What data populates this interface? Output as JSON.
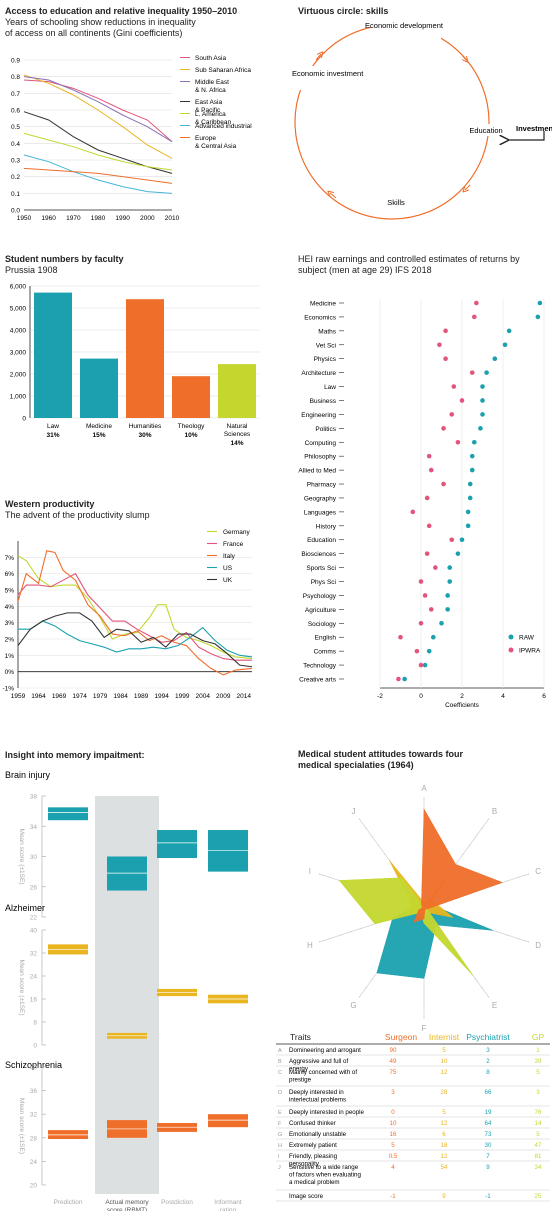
{
  "access": {
    "title": "Access to education and relative inequality 1950–2010",
    "subtitle": "Years of schooling show reductions in inequality of access on all continents (Gini coefficients)"
  },
  "virtuous": {
    "title": "Virtuous circle: skills",
    "nodes": [
      "Economic development",
      "Education",
      "Skills",
      "Economic investment"
    ],
    "input_label": "Investment"
  },
  "student": {
    "title": "Student numbers by faculty",
    "subtitle": "Prussia 1908"
  },
  "hei": {
    "title": "HEI raw earnings and controlled estimates of returns by subject (men at age 29)  IFS 2018"
  },
  "western": {
    "title": "Western productivity",
    "subtitle": "The advent of the productivity slump"
  },
  "memory": {
    "title": "Insight into memory impaitment:"
  },
  "medical": {
    "title": "Medical student attitudes towards four medical specialaties (1964)",
    "table_headers": [
      "Traits",
      "Surgeon",
      "Internist",
      "Psychiatrist",
      "GP"
    ],
    "rows": [
      {
        "letter": "A",
        "trait": "Domineering and arrogant",
        "values": [
          "90",
          "5",
          "3",
          "1"
        ]
      },
      {
        "letter": "B",
        "trait": "Aggressive and full of energy",
        "values": [
          "49",
          "10",
          "2",
          "39"
        ]
      },
      {
        "letter": "C",
        "trait": "Mainly concerned with of prestige",
        "values": [
          "75",
          "12",
          "8",
          "5"
        ]
      },
      {
        "letter": "D",
        "trait": "Deeply interested in interlectual problems",
        "values": [
          "3",
          "28",
          "66",
          "3"
        ]
      },
      {
        "letter": "E",
        "trait": "Deeply interested in people",
        "values": [
          "0",
          "5",
          "19",
          "76"
        ]
      },
      {
        "letter": "F",
        "trait": "Confused thinker",
        "values": [
          "10",
          "12",
          "64",
          "14"
        ]
      },
      {
        "letter": "G",
        "trait": "Emotionally unstable",
        "values": [
          "16",
          "6",
          "73",
          "5"
        ]
      },
      {
        "letter": "H",
        "trait": "Extremely patient",
        "values": [
          "5",
          "18",
          "30",
          "47"
        ]
      },
      {
        "letter": "I",
        "trait": "Friendly, pleasing personality",
        "values": [
          "0.5",
          "12",
          "7",
          "81"
        ]
      },
      {
        "letter": "J",
        "trait": "Sensitive to a wide range of factors when evaluating a medical problem",
        "values": [
          "4",
          "54",
          "9",
          "34"
        ]
      },
      {
        "letter": "",
        "trait": "Image score",
        "values": [
          "-1",
          "9",
          "-1",
          "25"
        ]
      }
    ]
  },
  "colors": {
    "teal": "#1aa0ae",
    "orange": "#ef6e2a",
    "lime": "#c4d72e",
    "pink": "#e2557a",
    "yellow": "#e9b520",
    "purple": "#8b72b5",
    "dark": "#333333",
    "grey": "#9aa0a3",
    "blue": "#2e9ec7",
    "green": "#4aa76a",
    "lightblue": "#45b4d8"
  },
  "chart_data": [
    {
      "id": "gini",
      "type": "line",
      "x": [
        1950,
        1960,
        1970,
        1980,
        1990,
        2000,
        2010
      ],
      "xlim": [
        1950,
        2010
      ],
      "ylim": [
        0,
        0.9
      ],
      "yticks": [
        0,
        0.1,
        0.2,
        0.3,
        0.4,
        0.5,
        0.6,
        0.7,
        0.8,
        0.9
      ],
      "series": [
        {
          "name": "South Asia",
          "color": "#e2557a",
          "values": [
            0.78,
            0.77,
            0.73,
            0.67,
            0.6,
            0.54,
            0.41
          ]
        },
        {
          "name": "Sub Saharan Africa",
          "color": "#e9b520",
          "values": [
            0.81,
            0.76,
            0.69,
            0.6,
            0.5,
            0.39,
            0.31
          ]
        },
        {
          "name": "Middle East & N. Africa",
          "color": "#8b72b5",
          "values": [
            0.8,
            0.78,
            0.72,
            0.65,
            0.57,
            0.5,
            0.41
          ]
        },
        {
          "name": "East Asia & Pacific",
          "color": "#333333",
          "values": [
            0.59,
            0.54,
            0.44,
            0.36,
            0.31,
            0.26,
            0.22
          ]
        },
        {
          "name": "L. America & Caribbean",
          "color": "#c4d72e",
          "values": [
            0.46,
            0.42,
            0.38,
            0.33,
            0.29,
            0.26,
            0.24
          ]
        },
        {
          "name": "Advanced industrial",
          "color": "#45b4d8",
          "values": [
            0.33,
            0.29,
            0.23,
            0.18,
            0.14,
            0.11,
            0.1
          ]
        },
        {
          "name": "Europe & Central Asia",
          "color": "#ef6e2a",
          "values": [
            0.25,
            0.24,
            0.23,
            0.22,
            0.2,
            0.18,
            0.16
          ]
        }
      ]
    },
    {
      "id": "faculty",
      "type": "bar",
      "ylim": [
        0,
        6000
      ],
      "yticks": [
        0,
        1000,
        2000,
        3000,
        4000,
        5000,
        6000
      ],
      "categories": [
        "Law",
        "Medicine",
        "Humanities",
        "Theology",
        "Natural Sciences"
      ],
      "values": [
        5700,
        2700,
        5400,
        1900,
        2450
      ],
      "percent_labels": [
        "31%",
        "15%",
        "30%",
        "10%",
        "14%"
      ],
      "colors": [
        "#1aa0ae",
        "#1aa0ae",
        "#ef6e2a",
        "#ef6e2a",
        "#c4d72e"
      ]
    },
    {
      "id": "hei",
      "type": "scatter",
      "xlabel": "Coefficients",
      "xlim": [
        -2,
        6
      ],
      "xticks": [
        -2,
        0,
        2,
        4,
        6
      ],
      "categories": [
        "Medicine",
        "Economics",
        "Maths",
        "Vet Sci",
        "Physics",
        "Architecture",
        "Law",
        "Business",
        "Engineering",
        "Politics",
        "Computing",
        "Philosophy",
        "Allied to Med",
        "Pharmacy",
        "Geography",
        "Languages",
        "History",
        "Education",
        "Biosciences",
        "Sports Sci",
        "Phys Sci",
        "Psychology",
        "Agriculture",
        "Sociology",
        "English",
        "Comms",
        "Technology",
        "Creative arts"
      ],
      "series": [
        {
          "name": "RAW",
          "color": "#1aa0ae",
          "values": [
            5.8,
            5.7,
            4.3,
            4.1,
            3.6,
            3.2,
            3.0,
            3.0,
            3.0,
            2.9,
            2.6,
            2.5,
            2.5,
            2.4,
            2.4,
            2.3,
            2.3,
            2.0,
            1.8,
            1.4,
            1.4,
            1.3,
            1.3,
            1.0,
            0.6,
            0.4,
            0.2,
            -0.8
          ]
        },
        {
          "name": "IPWRA",
          "color": "#e2557a",
          "values": [
            2.7,
            2.6,
            1.2,
            0.9,
            1.2,
            2.5,
            1.6,
            2.0,
            1.5,
            1.1,
            1.8,
            0.4,
            0.5,
            1.1,
            0.3,
            -0.4,
            0.4,
            1.5,
            0.3,
            0.7,
            0.0,
            0.2,
            0.5,
            0.0,
            -1.0,
            -0.2,
            0.0,
            -1.1
          ]
        }
      ]
    },
    {
      "id": "productivity",
      "type": "line",
      "xlim": [
        1959,
        2016
      ],
      "xticks": [
        1959,
        1964,
        1969,
        1974,
        1979,
        1984,
        1989,
        1994,
        1999,
        2004,
        2009,
        2014
      ],
      "ylim": [
        -1,
        8
      ],
      "yticks": [
        "-1%",
        "0%",
        "1%",
        "2%",
        "3%",
        "4%",
        "5%",
        "6%",
        "7%"
      ],
      "series": [
        {
          "name": "Germany",
          "color": "#c4d72e",
          "x": [
            1959,
            1961,
            1964,
            1967,
            1970,
            1973,
            1976,
            1979,
            1982,
            1985,
            1988,
            1991,
            1993,
            1995,
            1997,
            2000,
            2003,
            2006,
            2009,
            2012,
            2016
          ],
          "values": [
            7.1,
            6.8,
            5.7,
            5.2,
            5.3,
            5.3,
            4.5,
            3.3,
            2.0,
            2.3,
            2.4,
            3.3,
            4.1,
            4.1,
            2.6,
            2.1,
            1.9,
            1.6,
            1.2,
            0.9,
            0.8
          ]
        },
        {
          "name": "France",
          "color": "#e2557a",
          "x": [
            1959,
            1961,
            1964,
            1967,
            1970,
            1973,
            1976,
            1979,
            1982,
            1985,
            1988,
            1991,
            1994,
            1997,
            2000,
            2003,
            2006,
            2009,
            2012,
            2016
          ],
          "values": [
            4.7,
            5.3,
            5.3,
            5.2,
            5.6,
            6.0,
            4.7,
            3.9,
            3.1,
            3.1,
            2.6,
            2.2,
            1.8,
            1.9,
            2.4,
            1.5,
            1.1,
            0.8,
            0.7,
            0.7
          ]
        },
        {
          "name": "Italy",
          "color": "#ef6e2a",
          "x": [
            1959,
            1961,
            1964,
            1966,
            1968,
            1970,
            1973,
            1976,
            1979,
            1982,
            1985,
            1988,
            1991,
            1994,
            1997,
            2000,
            2003,
            2006,
            2009,
            2012,
            2016
          ],
          "values": [
            4.3,
            6.0,
            5.4,
            7.4,
            7.3,
            6.2,
            5.6,
            4.1,
            3.4,
            2.3,
            2.2,
            2.5,
            1.9,
            2.2,
            1.8,
            1.6,
            0.8,
            0.2,
            -0.2,
            0.1,
            0.2
          ]
        },
        {
          "name": "US",
          "color": "#1aa0ae",
          "x": [
            1959,
            1962,
            1965,
            1968,
            1971,
            1974,
            1977,
            1980,
            1983,
            1986,
            1989,
            1992,
            1995,
            1998,
            2001,
            2004,
            2007,
            2010,
            2013,
            2016
          ],
          "values": [
            2.6,
            2.6,
            3.1,
            2.8,
            2.3,
            1.9,
            1.7,
            1.5,
            1.2,
            1.4,
            1.4,
            1.5,
            1.4,
            1.6,
            2.1,
            2.7,
            1.9,
            1.3,
            1.0,
            0.9
          ]
        },
        {
          "name": "UK",
          "color": "#333333",
          "x": [
            1959,
            1962,
            1965,
            1968,
            1971,
            1974,
            1977,
            1980,
            1983,
            1986,
            1989,
            1992,
            1995,
            1998,
            2001,
            2004,
            2007,
            2010,
            2013,
            2016
          ],
          "values": [
            1.6,
            2.6,
            3.1,
            3.4,
            3.6,
            3.6,
            3.1,
            2.1,
            2.6,
            2.5,
            1.8,
            2.1,
            1.5,
            2.3,
            2.3,
            1.9,
            1.7,
            1.1,
            0.4,
            0.3
          ]
        }
      ]
    },
    {
      "id": "memory",
      "type": "boxes",
      "categories": [
        "Prediction",
        "Actual memory score (RBMT)",
        "Postdiction",
        "Informant rating"
      ],
      "ylabel": "Mean score (±1SE)",
      "panels": [
        {
          "name": "Brain injury",
          "color": "#1aa0ae",
          "ylim": [
            22,
            38
          ],
          "yticks": [
            22,
            26,
            30,
            34,
            38
          ],
          "boxes": [
            [
              34.8,
              36.5,
              35.8
            ],
            [
              25.5,
              30.0,
              27.8
            ],
            [
              29.8,
              33.5,
              31.8
            ],
            [
              28.0,
              33.5,
              30.8
            ]
          ]
        },
        {
          "name": "Alzheimer",
          "color": "#e9b520",
          "ylim": [
            0,
            40
          ],
          "yticks": [
            0,
            8,
            16,
            24,
            32,
            40
          ],
          "boxes": [
            [
              31.5,
              35.0,
              33.2
            ],
            [
              2.2,
              4.2,
              3.2
            ],
            [
              17.0,
              19.5,
              18.2
            ],
            [
              14.5,
              17.5,
              16.0
            ]
          ]
        },
        {
          "name": "Schizophrenia",
          "color": "#ef6e2a",
          "ylim": [
            20,
            40
          ],
          "yticks": [
            20,
            24,
            28,
            32,
            36,
            40
          ],
          "boxes": [
            [
              27.8,
              29.3,
              28.5
            ],
            [
              28.0,
              31.0,
              29.5
            ],
            [
              29.0,
              30.5,
              29.8
            ],
            [
              29.8,
              32.0,
              31.0
            ]
          ]
        }
      ]
    },
    {
      "id": "radar",
      "type": "radar",
      "axes": [
        "A",
        "B",
        "C",
        "D",
        "E",
        "F",
        "G",
        "H",
        "I",
        "J"
      ],
      "max": 100,
      "series": [
        {
          "name": "Surgeon",
          "color": "#ef6e2a",
          "values": [
            90,
            49,
            75,
            3,
            0,
            10,
            16,
            5,
            0.5,
            4
          ]
        },
        {
          "name": "Internist",
          "color": "#e9b520",
          "values": [
            5,
            10,
            12,
            28,
            5,
            12,
            6,
            18,
            12,
            54
          ]
        },
        {
          "name": "Psychiatrist",
          "color": "#1aa0ae",
          "values": [
            3,
            2,
            8,
            66,
            19,
            64,
            73,
            30,
            7,
            9
          ]
        },
        {
          "name": "GP",
          "color": "#c4d72e",
          "values": [
            1,
            39,
            5,
            3,
            76,
            14,
            5,
            47,
            81,
            34
          ]
        }
      ]
    }
  ]
}
